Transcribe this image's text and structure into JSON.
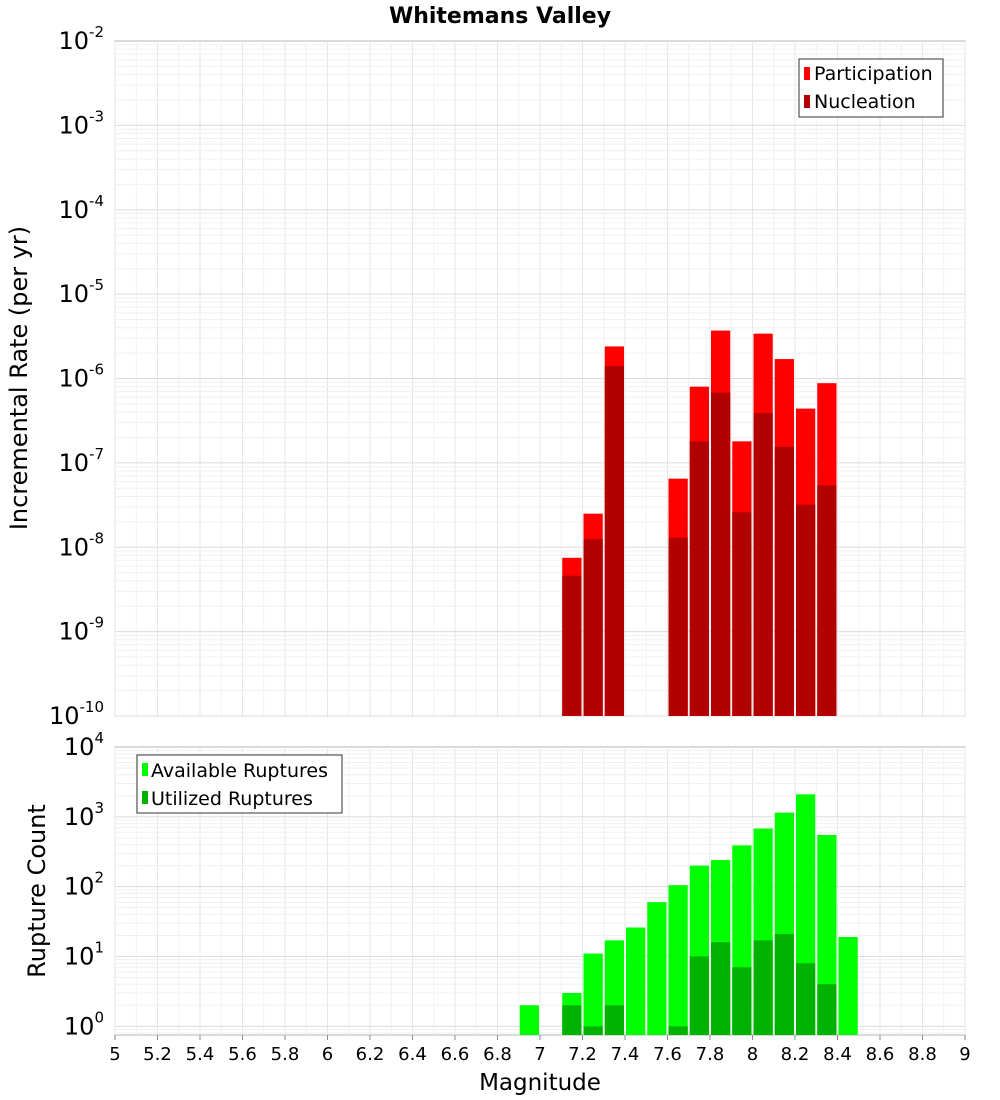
{
  "chart_data": [
    {
      "type": "bar",
      "title": "Whitemans Valley",
      "xlabel": "Magnitude",
      "ylabel": "Incremental Rate (per yr)",
      "yscale": "log",
      "ylim": [
        1e-10,
        0.01
      ],
      "xlim": [
        5,
        9
      ],
      "grid": true,
      "legend_position": "top-right",
      "colors": {
        "Participation": "#ff0000",
        "Nucleation": "#b20000"
      },
      "y_ticks": [
        {
          "base": "10",
          "exp": "-10",
          "value": 1e-10
        },
        {
          "base": "10",
          "exp": "-9",
          "value": 1e-09
        },
        {
          "base": "10",
          "exp": "-8",
          "value": 1e-08
        },
        {
          "base": "10",
          "exp": "-7",
          "value": 1e-07
        },
        {
          "base": "10",
          "exp": "-6",
          "value": 1e-06
        },
        {
          "base": "10",
          "exp": "-5",
          "value": 1e-05
        },
        {
          "base": "10",
          "exp": "-4",
          "value": 0.0001
        },
        {
          "base": "10",
          "exp": "-3",
          "value": 0.001
        },
        {
          "base": "10",
          "exp": "-2",
          "value": 0.01
        }
      ],
      "series": [
        {
          "name": "Participation",
          "points": [
            {
              "x": 7.15,
              "y": 7.5e-09
            },
            {
              "x": 7.25,
              "y": 2.5e-08
            },
            {
              "x": 7.35,
              "y": 2.4e-06
            },
            {
              "x": 7.65,
              "y": 6.5e-08
            },
            {
              "x": 7.75,
              "y": 8e-07
            },
            {
              "x": 7.85,
              "y": 3.7e-06
            },
            {
              "x": 7.95,
              "y": 1.8e-07
            },
            {
              "x": 8.05,
              "y": 3.4e-06
            },
            {
              "x": 8.15,
              "y": 1.7e-06
            },
            {
              "x": 8.25,
              "y": 4.4e-07
            },
            {
              "x": 8.35,
              "y": 8.8e-07
            }
          ]
        },
        {
          "name": "Nucleation",
          "points": [
            {
              "x": 7.15,
              "y": 4.6e-09
            },
            {
              "x": 7.25,
              "y": 1.25e-08
            },
            {
              "x": 7.35,
              "y": 1.4e-06
            },
            {
              "x": 7.65,
              "y": 1.3e-08
            },
            {
              "x": 7.75,
              "y": 1.8e-07
            },
            {
              "x": 7.85,
              "y": 6.8e-07
            },
            {
              "x": 7.95,
              "y": 2.6e-08
            },
            {
              "x": 8.05,
              "y": 3.9e-07
            },
            {
              "x": 8.15,
              "y": 1.55e-07
            },
            {
              "x": 8.25,
              "y": 3.2e-08
            },
            {
              "x": 8.35,
              "y": 5.4e-08
            }
          ]
        }
      ]
    },
    {
      "type": "bar",
      "xlabel": "Magnitude",
      "ylabel": "Rupture Count",
      "yscale": "log",
      "ylim": [
        0.75,
        10000
      ],
      "xlim": [
        5,
        9
      ],
      "grid": true,
      "legend_position": "top-left",
      "colors": {
        "Available Ruptures": "#00ff00",
        "Utilized Ruptures": "#00b200"
      },
      "y_ticks": [
        {
          "base": "10",
          "exp": "0",
          "value": 1
        },
        {
          "base": "10",
          "exp": "1",
          "value": 10
        },
        {
          "base": "10",
          "exp": "2",
          "value": 100
        },
        {
          "base": "10",
          "exp": "3",
          "value": 1000
        },
        {
          "base": "10",
          "exp": "4",
          "value": 10000
        }
      ],
      "x_ticks": [
        "5",
        "5.2",
        "5.4",
        "5.6",
        "5.8",
        "6",
        "6.2",
        "6.4",
        "6.6",
        "6.8",
        "7",
        "7.2",
        "7.4",
        "7.6",
        "7.8",
        "8",
        "8.2",
        "8.4",
        "8.6",
        "8.8",
        "9"
      ],
      "series": [
        {
          "name": "Available Ruptures",
          "points": [
            {
              "x": 6.95,
              "y": 2
            },
            {
              "x": 7.15,
              "y": 3
            },
            {
              "x": 7.25,
              "y": 11
            },
            {
              "x": 7.35,
              "y": 17
            },
            {
              "x": 7.45,
              "y": 26
            },
            {
              "x": 7.55,
              "y": 60
            },
            {
              "x": 7.65,
              "y": 105
            },
            {
              "x": 7.75,
              "y": 200
            },
            {
              "x": 7.85,
              "y": 240
            },
            {
              "x": 7.95,
              "y": 390
            },
            {
              "x": 8.05,
              "y": 680
            },
            {
              "x": 8.15,
              "y": 1150
            },
            {
              "x": 8.25,
              "y": 2100
            },
            {
              "x": 8.35,
              "y": 550
            },
            {
              "x": 8.45,
              "y": 19
            }
          ]
        },
        {
          "name": "Utilized Ruptures",
          "points": [
            {
              "x": 7.15,
              "y": 2
            },
            {
              "x": 7.25,
              "y": 1
            },
            {
              "x": 7.35,
              "y": 2
            },
            {
              "x": 7.65,
              "y": 1
            },
            {
              "x": 7.75,
              "y": 10
            },
            {
              "x": 7.85,
              "y": 16
            },
            {
              "x": 7.95,
              "y": 7
            },
            {
              "x": 8.05,
              "y": 17
            },
            {
              "x": 8.15,
              "y": 21
            },
            {
              "x": 8.25,
              "y": 8
            },
            {
              "x": 8.35,
              "y": 4
            }
          ]
        }
      ]
    }
  ]
}
